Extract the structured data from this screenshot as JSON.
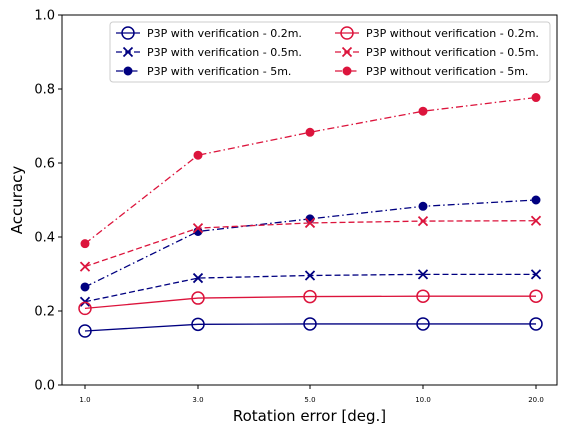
{
  "chart_data": {
    "type": "line",
    "title": "",
    "xlabel": "Rotation error [deg.]",
    "ylabel": "Accuracy",
    "ylim": [
      0.0,
      1.0
    ],
    "x": [
      1.0,
      3.0,
      5.0,
      10.0,
      20.0
    ],
    "x_tick_labels": [
      "1.0",
      "3.0",
      "5.0",
      "10.0",
      "20.0"
    ],
    "y_ticks": [
      0.0,
      0.2,
      0.4,
      0.6,
      0.8,
      1.0
    ],
    "y_tick_labels": [
      "0.0",
      "0.2",
      "0.4",
      "0.6",
      "0.8",
      "1.0"
    ],
    "grid": false,
    "legend_position": "top-right",
    "series": [
      {
        "name": "P3P with verification - 0.2m.",
        "values": [
          0.146,
          0.164,
          0.165,
          0.165,
          0.165
        ],
        "color": "#000080",
        "marker": "circle-open",
        "linestyle": "solid"
      },
      {
        "name": "P3P with verification - 0.5m.",
        "values": [
          0.225,
          0.289,
          0.296,
          0.299,
          0.299
        ],
        "color": "#000080",
        "marker": "x",
        "linestyle": "dashed"
      },
      {
        "name": "P3P with verification - 5m.",
        "values": [
          0.265,
          0.415,
          0.449,
          0.483,
          0.5
        ],
        "color": "#000080",
        "marker": "dot",
        "linestyle": "dashdot"
      },
      {
        "name": "P3P without verification - 0.2m.",
        "values": [
          0.207,
          0.235,
          0.239,
          0.24,
          0.24
        ],
        "color": "#dc143c",
        "marker": "circle-open",
        "linestyle": "solid"
      },
      {
        "name": "P3P without verification - 0.5m.",
        "values": [
          0.32,
          0.424,
          0.438,
          0.443,
          0.444
        ],
        "color": "#dc143c",
        "marker": "x",
        "linestyle": "dashed"
      },
      {
        "name": "P3P without verification - 5m.",
        "values": [
          0.382,
          0.621,
          0.683,
          0.74,
          0.777
        ],
        "color": "#dc143c",
        "marker": "dot",
        "linestyle": "dashdot"
      }
    ]
  }
}
